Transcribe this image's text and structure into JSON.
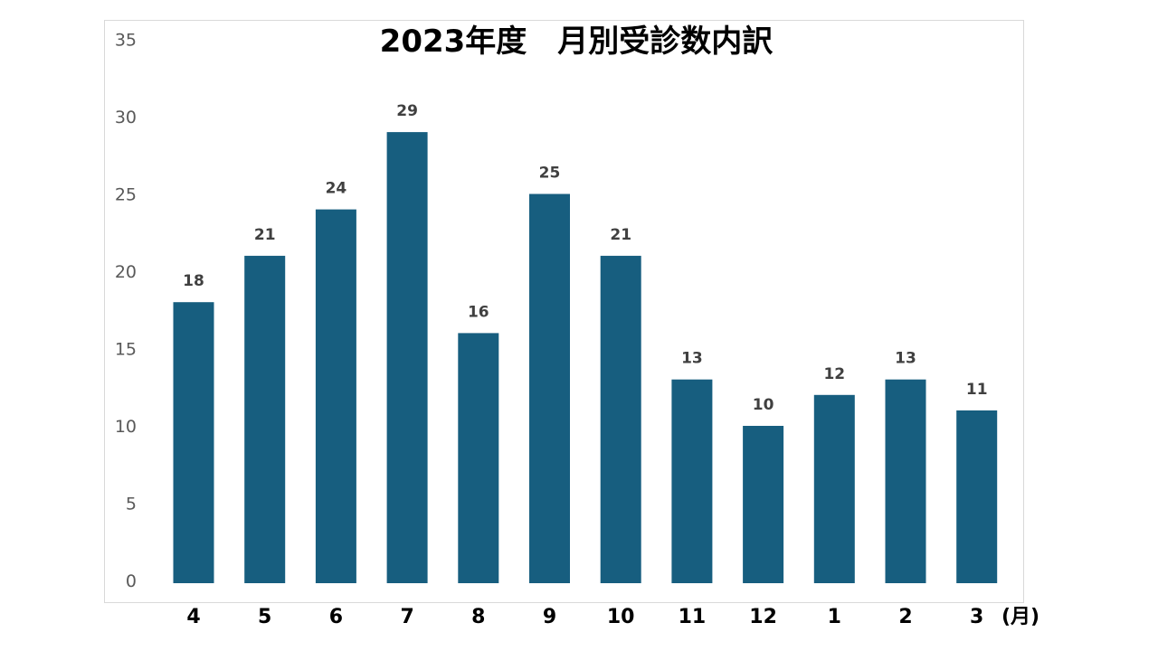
{
  "chart_data": {
    "type": "bar",
    "title": "2023年度　月別受診数内訳",
    "xlabel": "",
    "ylabel": "",
    "x_unit_label": "(月)",
    "categories": [
      "4",
      "5",
      "6",
      "7",
      "8",
      "9",
      "10",
      "11",
      "12",
      "1",
      "2",
      "3"
    ],
    "values": [
      18,
      21,
      24,
      29,
      16,
      25,
      21,
      13,
      10,
      12,
      13,
      11
    ],
    "ylim": [
      0,
      35
    ],
    "yticks": [
      0,
      5,
      10,
      15,
      20,
      25,
      30,
      35
    ],
    "grid": false,
    "legend": "none",
    "bar_color": "#175e7f"
  }
}
